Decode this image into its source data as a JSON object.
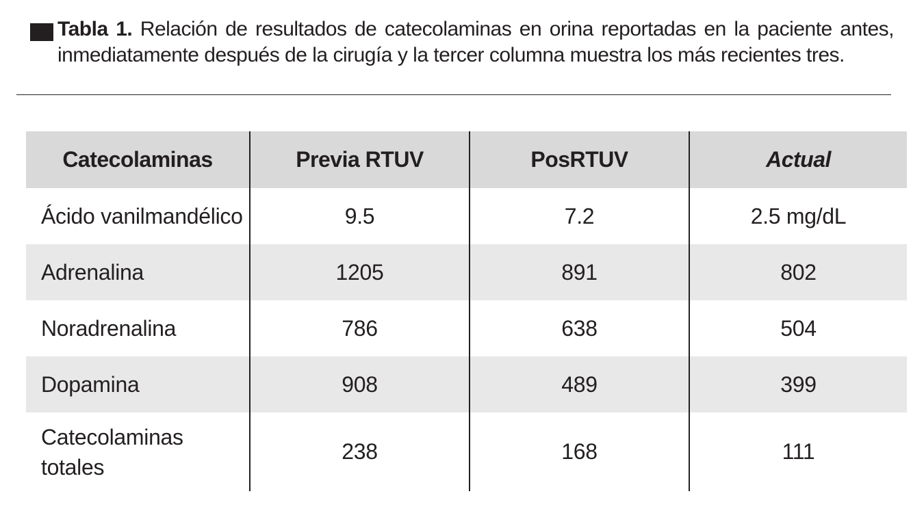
{
  "caption": {
    "label": "Tabla 1.",
    "text": "Relación de resultados de catecolaminas en orina reportadas en la paciente antes, inmediatamente después de la cirugía y la tercer columna muestra los más recientes tres."
  },
  "table": {
    "headers": [
      "Catecolaminas",
      "Previa RTUV",
      "PosRTUV",
      "Actual"
    ],
    "rows": [
      [
        "Ácido vanilmandélico",
        "9.5",
        "7.2",
        "2.5 mg/dL"
      ],
      [
        "Adrenalina",
        "1205",
        "891",
        "802"
      ],
      [
        "Noradrenalina",
        "786",
        "638",
        "504"
      ],
      [
        "Dopamina",
        "908",
        "489",
        "399"
      ],
      [
        "Catecolaminas totales",
        "238",
        "168",
        "111"
      ]
    ]
  }
}
